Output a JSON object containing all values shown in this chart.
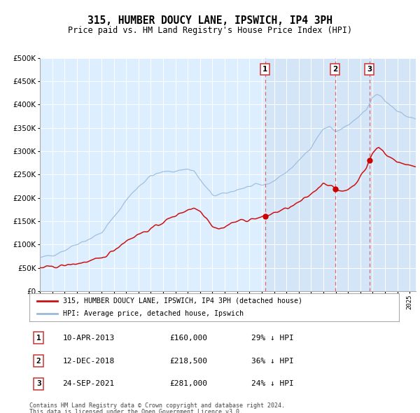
{
  "title": "315, HUMBER DOUCY LANE, IPSWICH, IP4 3PH",
  "subtitle": "Price paid vs. HM Land Registry's House Price Index (HPI)",
  "legend_house": "315, HUMBER DOUCY LANE, IPSWICH, IP4 3PH (detached house)",
  "legend_hpi": "HPI: Average price, detached house, Ipswich",
  "footnote1": "Contains HM Land Registry data © Crown copyright and database right 2024.",
  "footnote2": "This data is licensed under the Open Government Licence v3.0.",
  "sales": [
    {
      "label": "1",
      "date": "10-APR-2013",
      "date_num": 2013.27,
      "price": 160000,
      "pct": "29% ↓ HPI"
    },
    {
      "label": "2",
      "date": "12-DEC-2018",
      "date_num": 2018.95,
      "price": 218500,
      "pct": "36% ↓ HPI"
    },
    {
      "label": "3",
      "date": "24-SEP-2021",
      "date_num": 2021.73,
      "price": 281000,
      "pct": "24% ↓ HPI"
    }
  ],
  "ylim": [
    0,
    500000
  ],
  "yticks": [
    0,
    50000,
    100000,
    150000,
    200000,
    250000,
    300000,
    350000,
    400000,
    450000,
    500000
  ],
  "background_chart": "#ddeeff",
  "hpi_color": "#99bbdd",
  "house_color": "#cc1111",
  "grid_color": "#ccccdd",
  "dashed_color": "#dd6666",
  "marker_color": "#cc0000",
  "shaded_color": "#ccddf0"
}
